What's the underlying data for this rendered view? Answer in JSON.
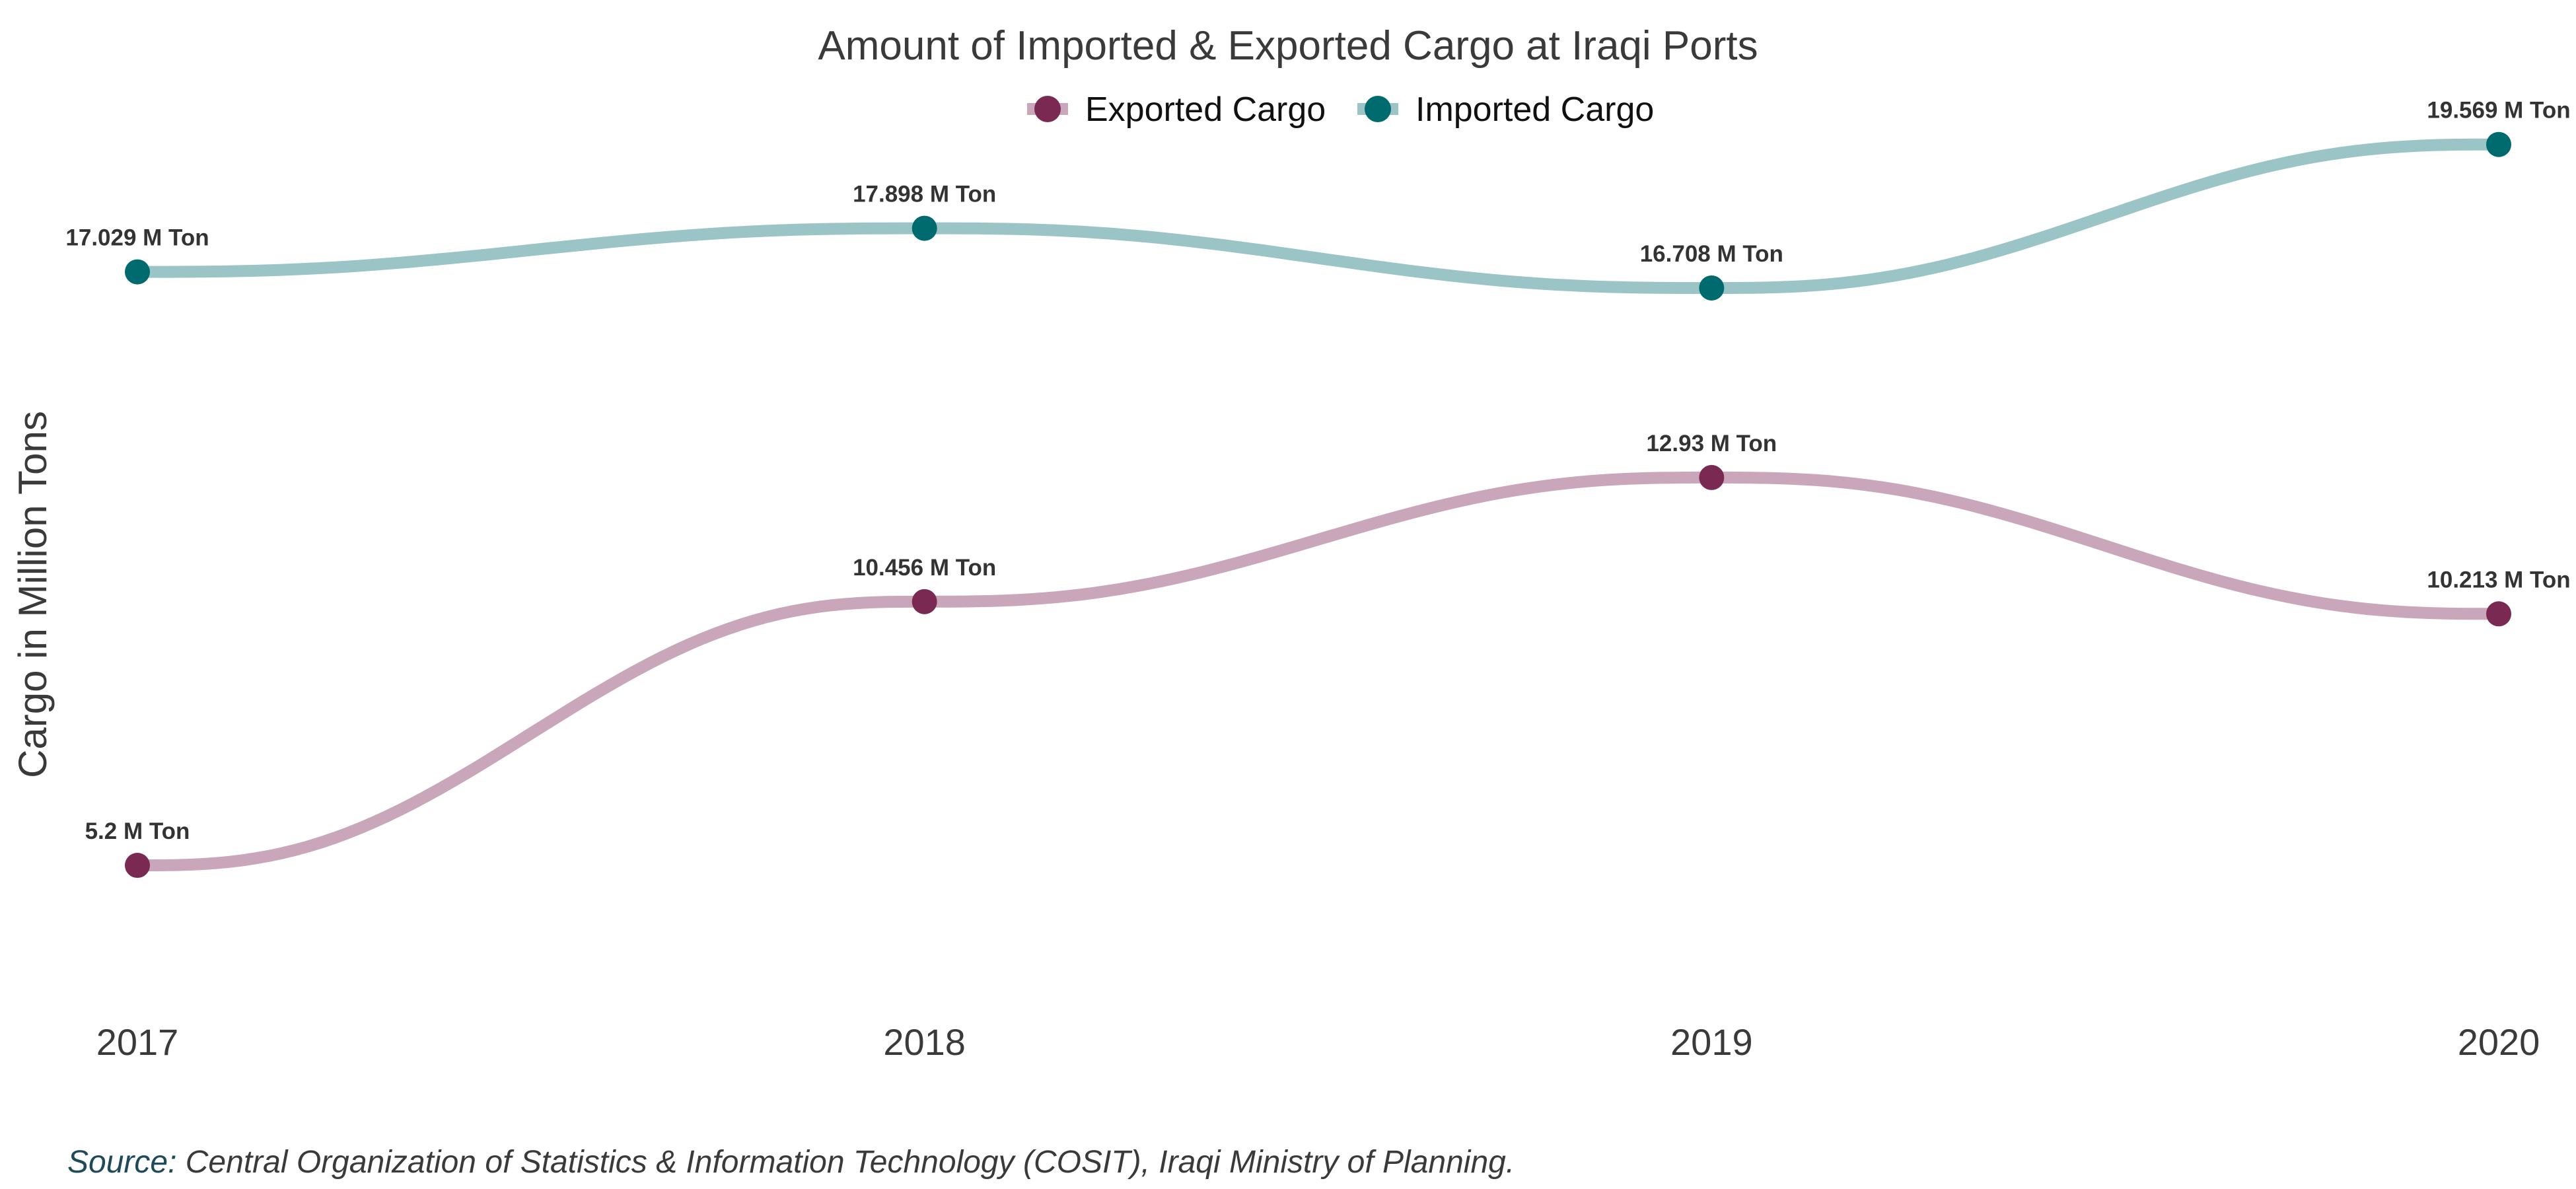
{
  "chart_data": {
    "type": "line",
    "title": "Amount of Imported & Exported Cargo at Iraqi Ports",
    "ylabel": "Cargo in Million Tons",
    "xlabel": "",
    "x": [
      "2017",
      "2018",
      "2019",
      "2020"
    ],
    "ylim": [
      4,
      21
    ],
    "grid": false,
    "legend_position": "top",
    "series": [
      {
        "name": "Exported Cargo",
        "values": [
          5.2,
          10.456,
          12.93,
          10.213
        ],
        "labels": [
          "5.2 M Ton",
          "10.456 M Ton",
          "12.93 M Ton",
          "10.213 M Ton"
        ],
        "line_color": "#c9a6b9",
        "point_color": "#7a2a52"
      },
      {
        "name": "Imported Cargo",
        "values": [
          17.029,
          17.898,
          16.708,
          19.569
        ],
        "labels": [
          "17.029 M Ton",
          "17.898 M Ton",
          "16.708 M Ton",
          "19.569 M Ton"
        ],
        "line_color": "#9ac4c6",
        "point_color": "#006b6e"
      }
    ]
  },
  "source": {
    "label": "Source:",
    "text": " Central Organization of Statistics & Information Technology (COSIT), Iraqi Ministry of Planning."
  }
}
